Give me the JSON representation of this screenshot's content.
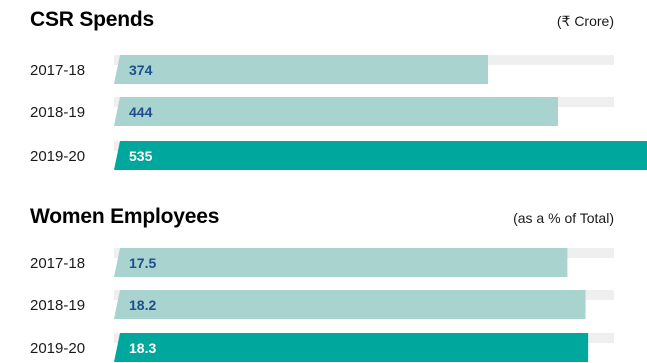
{
  "colors": {
    "track": "#efefef",
    "bar_light": "#a8d3cf",
    "bar_highlight": "#00a79d",
    "value_text": "#1f4e8c"
  },
  "chart_data": [
    {
      "type": "bar",
      "orientation": "horizontal",
      "title": "CSR Spends",
      "unit_label": "(₹ Crore)",
      "categories": [
        "2017-18",
        "2018-19",
        "2019-20"
      ],
      "values": [
        374,
        444,
        535
      ],
      "value_labels": [
        "374",
        "444",
        "535"
      ],
      "xlim": [
        0,
        570
      ],
      "highlight_index": 2
    },
    {
      "type": "bar",
      "orientation": "horizontal",
      "title": "Women Employees",
      "unit_label": "(as a % of Total)",
      "categories": [
        "2017-18",
        "2018-19",
        "2019-20"
      ],
      "values": [
        17.5,
        18.2,
        18.3
      ],
      "value_labels": [
        "17.5",
        "18.2",
        "18.3"
      ],
      "xlim": [
        0,
        22
      ],
      "highlight_index": 2
    }
  ]
}
